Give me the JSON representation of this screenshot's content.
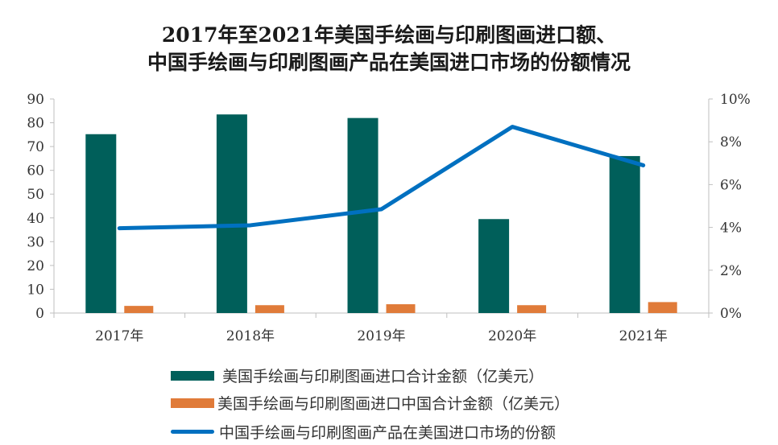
{
  "chart_data": {
    "type": "bar",
    "title_line1": "2017年至2021年美国手绘画与印刷图画进口额、",
    "title_line2": "中国手绘画与印刷图画产品在美国进口市场的份额情况",
    "categories": [
      "2017年",
      "2018年",
      "2019年",
      "2020年",
      "2021年"
    ],
    "series": [
      {
        "name": "美国手绘画与印刷图画进口合计金额（亿美元）",
        "type": "bar",
        "axis": "left",
        "color": "#005f5a",
        "values": [
          75.2,
          83.5,
          82.0,
          39.5,
          66.0
        ]
      },
      {
        "name": "美国手绘画与印刷图画进口中国合计金额（亿美元）",
        "type": "bar",
        "axis": "left",
        "color": "#e07b39",
        "values": [
          3.0,
          3.3,
          3.7,
          3.3,
          4.6
        ]
      },
      {
        "name": "中国手绘画与印刷图画产品在美国进口市场的份额",
        "type": "line",
        "axis": "right",
        "color": "#0070c0",
        "values": [
          3.96,
          4.1,
          4.85,
          8.7,
          6.9
        ]
      }
    ],
    "left_axis": {
      "ylim": [
        0,
        90
      ],
      "ticks": [
        "0",
        "10",
        "20",
        "30",
        "40",
        "50",
        "60",
        "70",
        "80",
        "90"
      ]
    },
    "right_axis": {
      "ylim": [
        0,
        10
      ],
      "ticks": [
        "0%",
        "2%",
        "4%",
        "6%",
        "8%",
        "10%"
      ]
    },
    "legend_position": "bottom"
  }
}
